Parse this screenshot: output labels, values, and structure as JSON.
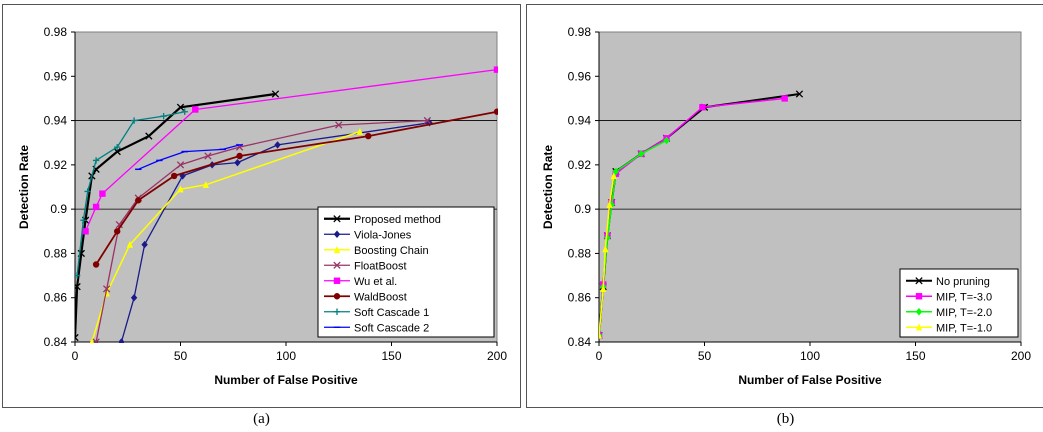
{
  "panels": [
    {
      "caption": "(a)",
      "chart_data": {
        "type": "line",
        "title": "",
        "xlabel": "Number of False Positive",
        "ylabel": "Detection Rate",
        "xlim": [
          0,
          200
        ],
        "ylim": [
          0.84,
          0.98
        ],
        "xticks": [
          0,
          50,
          100,
          150,
          200
        ],
        "yticks": [
          0.84,
          0.86,
          0.88,
          0.9,
          0.92,
          0.94,
          0.96,
          0.98
        ],
        "xtick_labels": [
          "0",
          "50",
          "100",
          "150",
          "200"
        ],
        "ytick_labels": [
          "0.84",
          "0.86",
          "0.88",
          "0.9",
          "0.92",
          "0.94",
          "0.96",
          "0.98"
        ],
        "grid": "horizontal at 0.9 and 0.94",
        "plot_background": "#c0c0c0",
        "legend_position": "lower-right",
        "series": [
          {
            "name": "Proposed method",
            "color": "#000000",
            "marker": "x",
            "width": 2.2,
            "x": [
              0,
              1,
              3,
              5,
              8,
              10,
              20,
              35,
              50,
              95
            ],
            "y": [
              0.842,
              0.865,
              0.88,
              0.895,
              0.915,
              0.918,
              0.926,
              0.933,
              0.946,
              0.952
            ]
          },
          {
            "name": "Viola-Jones",
            "color": "#1a1a8c",
            "marker": "diamond",
            "width": 1.3,
            "x": [
              22,
              28,
              33,
              51,
              65,
              77,
              96,
              168
            ],
            "y": [
              0.84,
              0.86,
              0.884,
              0.915,
              0.92,
              0.921,
              0.929,
              0.939
            ]
          },
          {
            "name": "Boosting Chain",
            "color": "#ffff00",
            "marker": "triangle",
            "width": 1.5,
            "x": [
              8,
              15,
              26,
              50,
              62,
              135
            ],
            "y": [
              0.84,
              0.862,
              0.884,
              0.909,
              0.911,
              0.935
            ]
          },
          {
            "name": "FloatBoost",
            "color": "#993366",
            "marker": "x",
            "width": 1.3,
            "x": [
              10,
              15,
              21,
              30,
              50,
              63,
              78,
              125,
              167
            ],
            "y": [
              0.84,
              0.864,
              0.893,
              0.905,
              0.92,
              0.924,
              0.928,
              0.938,
              0.94
            ]
          },
          {
            "name": "Wu et al.",
            "color": "#ff00ff",
            "marker": "square",
            "width": 1.3,
            "x": [
              5,
              10,
              13,
              57,
              200
            ],
            "y": [
              0.89,
              0.901,
              0.907,
              0.945,
              0.963
            ]
          },
          {
            "name": "WaldBoost",
            "color": "#800000",
            "marker": "circle",
            "width": 1.8,
            "x": [
              10,
              20,
              30,
              47,
              78,
              139,
              200
            ],
            "y": [
              0.875,
              0.89,
              0.904,
              0.915,
              0.924,
              0.933,
              0.944
            ]
          },
          {
            "name": "Soft Cascade 1",
            "color": "#008080",
            "marker": "plus",
            "width": 1.3,
            "x": [
              1,
              4,
              6,
              10,
              20,
              28,
              42,
              52
            ],
            "y": [
              0.87,
              0.895,
              0.908,
              0.922,
              0.928,
              0.94,
              0.942,
              0.944
            ]
          },
          {
            "name": "Soft Cascade 2",
            "color": "#0000ff",
            "marker": "dash",
            "width": 1.3,
            "x": [
              30,
              40,
              52,
              70,
              78
            ],
            "y": [
              0.918,
              0.922,
              0.926,
              0.927,
              0.929
            ]
          }
        ]
      }
    },
    {
      "caption": "(b)",
      "chart_data": {
        "type": "line",
        "title": "",
        "xlabel": "Number of False Positive",
        "ylabel": "Detection Rate",
        "xlim": [
          0,
          200
        ],
        "ylim": [
          0.84,
          0.98
        ],
        "xticks": [
          0,
          50,
          100,
          150,
          200
        ],
        "yticks": [
          0.84,
          0.86,
          0.88,
          0.9,
          0.92,
          0.94,
          0.96,
          0.98
        ],
        "xtick_labels": [
          "0",
          "50",
          "100",
          "150",
          "200"
        ],
        "ytick_labels": [
          "0.84",
          "0.86",
          "0.88",
          "0.9",
          "0.92",
          "0.94",
          "0.96",
          "0.98"
        ],
        "grid": "horizontal at 0.9 and 0.94",
        "plot_background": "#c0c0c0",
        "legend_position": "lower-right",
        "series": [
          {
            "name": "No pruning",
            "color": "#000000",
            "marker": "x",
            "width": 2.0,
            "x": [
              0,
              2,
              4,
              6,
              8,
              20,
              32,
              50,
              95
            ],
            "y": [
              0.843,
              0.865,
              0.888,
              0.903,
              0.917,
              0.925,
              0.932,
              0.946,
              0.952
            ]
          },
          {
            "name": "MIP, T=-3.0",
            "color": "#ff00ff",
            "marker": "square",
            "width": 1.5,
            "x": [
              0,
              2,
              4,
              6,
              8,
              20,
              32,
              49,
              88
            ],
            "y": [
              0.843,
              0.866,
              0.888,
              0.903,
              0.916,
              0.925,
              0.932,
              0.946,
              0.95
            ]
          },
          {
            "name": "MIP, T=-2.0",
            "color": "#00ff00",
            "marker": "diamond",
            "width": 1.5,
            "x": [
              0,
              2,
              4,
              6,
              8,
              20,
              32
            ],
            "y": [
              0.843,
              0.865,
              0.887,
              0.902,
              0.917,
              0.925,
              0.931
            ]
          },
          {
            "name": "MIP, T=-1.0",
            "color": "#ffff00",
            "marker": "triangle",
            "width": 1.5,
            "x": [
              0,
              2,
              3,
              5,
              7
            ],
            "y": [
              0.843,
              0.864,
              0.882,
              0.902,
              0.915
            ]
          }
        ]
      }
    }
  ]
}
